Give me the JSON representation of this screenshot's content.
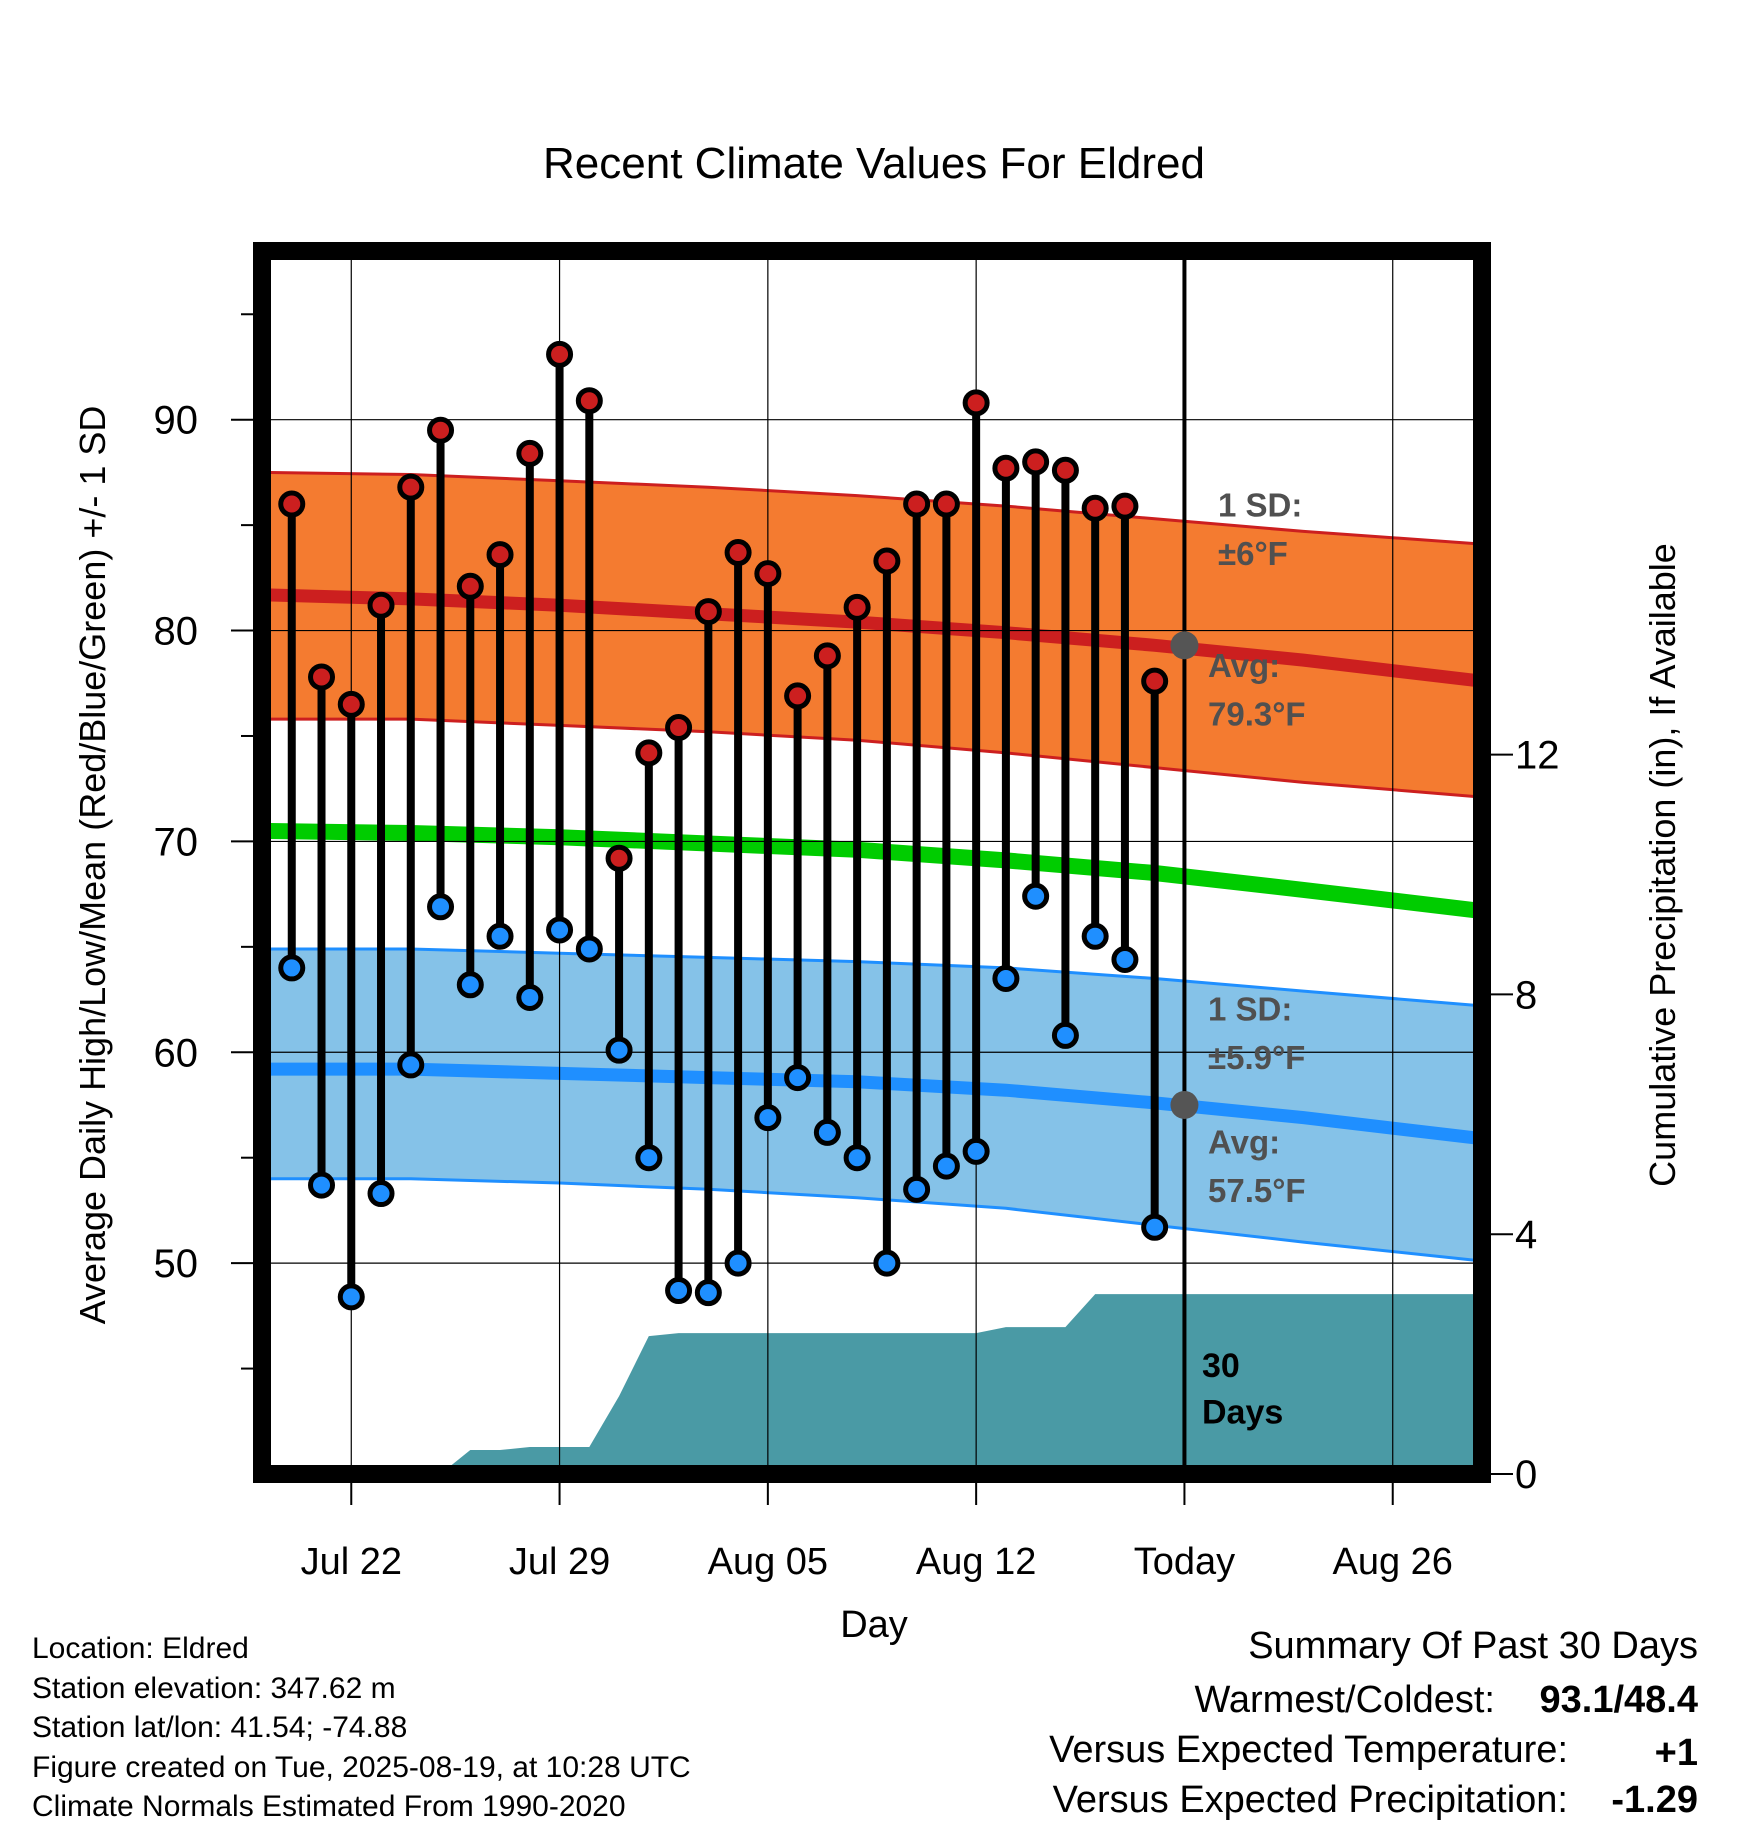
{
  "chart_data": {
    "type": "line",
    "title": "Recent Climate Values For Eldred",
    "xlabel": "Day",
    "ylabel": "Average Daily High/Low/Mean (Red/Blue/Green) +/- 1 SD",
    "y2label": "Cumulative Precipitation (in), If Available",
    "ylim": [
      40,
      98
    ],
    "y2lim": [
      0,
      20.4
    ],
    "xlim": [
      "2025-07-19",
      "2025-08-29"
    ],
    "x_ticks": [
      {
        "date": "2025-07-22",
        "label": "Jul 22"
      },
      {
        "date": "2025-07-29",
        "label": "Jul 29"
      },
      {
        "date": "2025-08-05",
        "label": "Aug 05"
      },
      {
        "date": "2025-08-12",
        "label": "Aug 12"
      },
      {
        "date": "2025-08-19",
        "label": "Today"
      },
      {
        "date": "2025-08-26",
        "label": "Aug 26"
      }
    ],
    "y_ticks": [
      50,
      60,
      70,
      80,
      90
    ],
    "y2_ticks": [
      0,
      4,
      8,
      12
    ],
    "grid": true,
    "today": "2025-08-19",
    "dates": [
      "2025-07-20",
      "2025-07-21",
      "2025-07-22",
      "2025-07-23",
      "2025-07-24",
      "2025-07-25",
      "2025-07-26",
      "2025-07-27",
      "2025-07-28",
      "2025-07-29",
      "2025-07-30",
      "2025-07-31",
      "2025-08-01",
      "2025-08-02",
      "2025-08-03",
      "2025-08-04",
      "2025-08-05",
      "2025-08-06",
      "2025-08-07",
      "2025-08-08",
      "2025-08-09",
      "2025-08-10",
      "2025-08-11",
      "2025-08-12",
      "2025-08-13",
      "2025-08-14",
      "2025-08-15",
      "2025-08-16",
      "2025-08-17",
      "2025-08-18"
    ],
    "series": [
      {
        "name": "Daily High",
        "color": "#cc1f1f",
        "values": [
          86.0,
          77.8,
          76.5,
          81.2,
          86.8,
          89.5,
          82.1,
          83.6,
          88.4,
          93.1,
          90.9,
          69.2,
          74.2,
          75.4,
          80.9,
          83.7,
          82.7,
          76.9,
          78.8,
          81.1,
          83.3,
          86.0,
          86.0,
          90.8,
          87.7,
          88.0,
          87.6,
          85.8,
          85.9,
          77.6
        ]
      },
      {
        "name": "Daily Low",
        "color": "#1f8fff",
        "values": [
          64.0,
          53.7,
          48.4,
          53.3,
          59.4,
          66.9,
          63.2,
          65.5,
          62.6,
          65.8,
          64.9,
          60.1,
          55.0,
          48.7,
          48.6,
          50.0,
          56.9,
          58.8,
          56.2,
          55.0,
          50.0,
          53.5,
          54.6,
          55.3,
          63.5,
          67.4,
          60.8,
          65.5,
          64.4,
          51.7
        ]
      },
      {
        "name": "Cumulative Precipitation",
        "color": "#4a9aa5",
        "axis": "right",
        "x": [
          "2025-07-19",
          "2025-07-21",
          "2025-07-22",
          "2025-07-23",
          "2025-07-24",
          "2025-07-25",
          "2025-07-26",
          "2025-07-27",
          "2025-07-28",
          "2025-07-29",
          "2025-07-30",
          "2025-07-31",
          "2025-08-01",
          "2025-08-02",
          "2025-08-03",
          "2025-08-04",
          "2025-08-05",
          "2025-08-06",
          "2025-08-07",
          "2025-08-08",
          "2025-08-09",
          "2025-08-10",
          "2025-08-11",
          "2025-08-12",
          "2025-08-13",
          "2025-08-14",
          "2025-08-15",
          "2025-08-16",
          "2025-08-17",
          "2025-08-18",
          "2025-08-19",
          "2025-08-29"
        ],
        "values": [
          0,
          0,
          0,
          0,
          0,
          0,
          0.4,
          0.4,
          0.45,
          0.45,
          0.45,
          1.3,
          2.3,
          2.35,
          2.35,
          2.35,
          2.35,
          2.35,
          2.35,
          2.35,
          2.35,
          2.35,
          2.35,
          2.35,
          2.45,
          2.45,
          2.45,
          3.0,
          3.0,
          3.0,
          3.0,
          3.0
        ]
      }
    ],
    "normals": {
      "dates": [
        "2025-07-19",
        "2025-07-24",
        "2025-07-29",
        "2025-08-03",
        "2025-08-08",
        "2025-08-13",
        "2025-08-18",
        "2025-08-23",
        "2025-08-29"
      ],
      "high_mean": [
        81.7,
        81.5,
        81.2,
        80.8,
        80.4,
        79.9,
        79.3,
        78.6,
        77.6
      ],
      "high_upper": [
        87.5,
        87.4,
        87.1,
        86.8,
        86.4,
        85.9,
        85.3,
        84.7,
        84.1
      ],
      "high_lower": [
        75.8,
        75.8,
        75.5,
        75.2,
        74.8,
        74.2,
        73.5,
        72.8,
        72.1
      ],
      "mean": [
        70.5,
        70.4,
        70.2,
        69.9,
        69.6,
        69.1,
        68.5,
        67.7,
        66.7
      ],
      "low_mean": [
        59.2,
        59.2,
        59.0,
        58.8,
        58.6,
        58.2,
        57.6,
        56.9,
        55.9
      ],
      "low_upper": [
        64.9,
        64.9,
        64.7,
        64.5,
        64.3,
        64.0,
        63.5,
        62.9,
        62.2
      ],
      "low_lower": [
        54.0,
        54.0,
        53.8,
        53.5,
        53.1,
        52.6,
        51.8,
        51.0,
        50.1
      ]
    },
    "annotations": {
      "high_sd": "1 SD:",
      "high_sd_value": "±6°F",
      "high_avg": "Avg:",
      "high_avg_value": "79.3°F",
      "low_sd": "1 SD:",
      "low_sd_value": "±5.9°F",
      "low_avg": "Avg:",
      "low_avg_value": "57.5°F",
      "days_line1": "30",
      "days_line2": "Days"
    },
    "today_markers": {
      "high": 79.3,
      "low": 57.5
    }
  },
  "footer": {
    "location": "Location: Eldred",
    "elevation": "Station elevation: 347.62 m",
    "latlon": "Station lat/lon: 41.54; -74.88",
    "created": "Figure created on Tue, 2025-08-19, at 10:28 UTC",
    "normals": "Climate Normals Estimated From 1990-2020"
  },
  "summary": {
    "title": "Summary Of Past 30 Days",
    "warm_cold_label": "Warmest/Coldest:",
    "warm_cold_value": "93.1/48.4",
    "temp_label": "Versus Expected Temperature:",
    "temp_value": "+1",
    "precip_label": "Versus Expected Precipitation:",
    "precip_value": "-1.29",
    "temp_color": "#cc2222",
    "precip_color": "#a0522d"
  }
}
